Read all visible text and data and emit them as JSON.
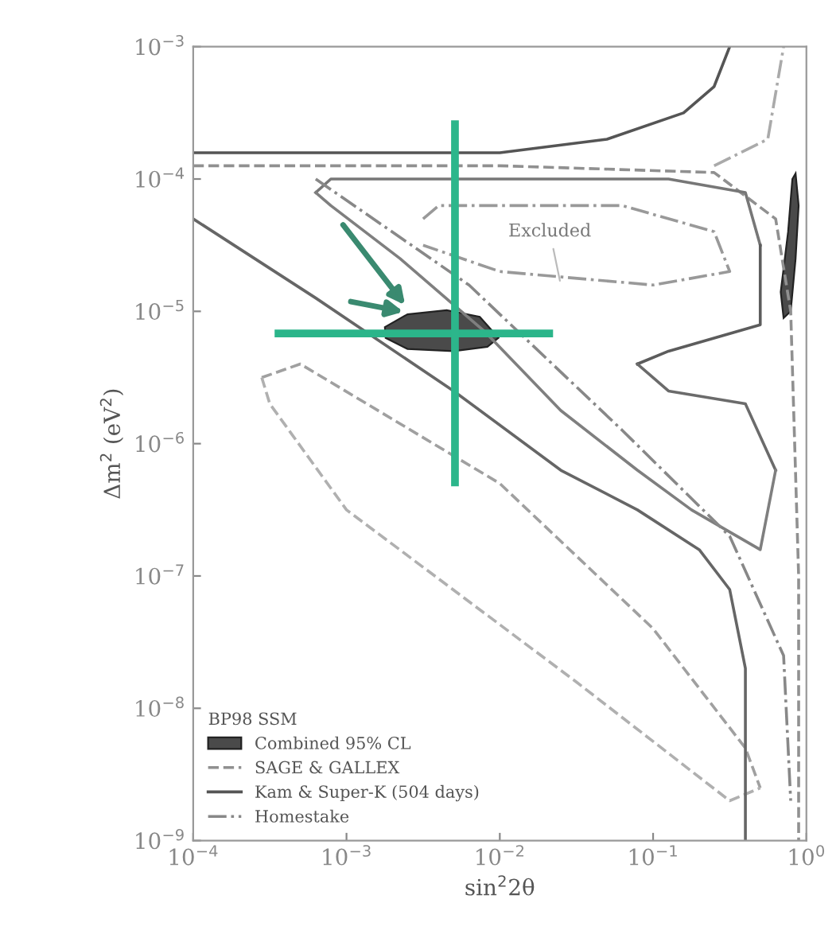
{
  "chart_data": {
    "type": "line",
    "xlabel": "sin$^{2}$2θ",
    "ylabel": "Δm$^{2}$ (eV$^{2}$)",
    "legend_title": "BP98 SSM",
    "legend": "bottom left",
    "log": "xy",
    "grid": false,
    "xlim": [
      0.0001,
      1
    ],
    "ylim": [
      1e-09,
      0.001
    ],
    "xticks": [
      {
        "value": 0.0001,
        "label": "10$^{−4}$"
      },
      {
        "value": 0.001,
        "label": "10$^{−3}$"
      },
      {
        "value": 0.01,
        "label": "10$^{−2}$"
      },
      {
        "value": 0.1,
        "label": "10$^{−1}$"
      },
      {
        "value": 1,
        "label": "10$^{0}$"
      }
    ],
    "yticks": [
      {
        "value": 1e-09,
        "label": "10$^{−9}$"
      },
      {
        "value": 1e-08,
        "label": "10$^{−8}$"
      },
      {
        "value": 1e-07,
        "label": "10$^{−7}$"
      },
      {
        "value": 1e-06,
        "label": "10$^{−6}$"
      },
      {
        "value": 1e-05,
        "label": "10$^{−5}$"
      },
      {
        "value": 0.0001,
        "label": "10$^{−4}$"
      },
      {
        "value": 0.001,
        "label": "10$^{−3}$"
      }
    ],
    "annotations": [
      {
        "text": "Excluded",
        "x": 0.025,
        "y": 1.58e-05
      }
    ],
    "series": [
      {
        "name": "Combined 95% CL",
        "type": "area",
        "color": "#4a4a4a",
        "x": [
          0.00178,
          0.0025,
          0.0045,
          0.0074,
          0.0098,
          0.0083,
          0.005,
          0.0025,
          0.0018
        ],
        "values": [
          7.6e-06,
          9.5e-06,
          1.02e-05,
          9.1e-06,
          6.3e-06,
          5.4e-06,
          5e-06,
          5.2e-06,
          6.3e-06
        ]
      },
      {
        "type": "area",
        "color": "#4a4a4a",
        "x": [
          0.85,
          0.89,
          0.85,
          0.79,
          0.71,
          0.68,
          0.76,
          0.81
        ],
        "values": [
          0.00011,
          6.3e-05,
          2.5e-05,
          1e-05,
          8.9e-06,
          1.4e-05,
          4e-05,
          0.0001
        ]
      },
      {
        "name": "SAGE & GALLEX",
        "line_style": "dashed",
        "color": "#909090",
        "x": [
          0.0001,
          0.01,
          0.25,
          0.63,
          0.79,
          0.89,
          0.89
        ],
        "values": [
          0.000126,
          0.000126,
          0.000112,
          5e-05,
          1e-05,
          1e-07,
          1e-09
        ]
      },
      {
        "line_style": "dashed",
        "color": "#a0a0a0",
        "x": [
          0.00028,
          0.0005,
          0.01,
          0.1,
          0.4,
          0.5
        ],
        "values": [
          3.16e-06,
          4e-06,
          5e-07,
          4e-08,
          5e-09,
          2.5e-09
        ]
      },
      {
        "line_style": "dashed",
        "color": "#b0b0b0",
        "x": [
          0.00028,
          0.000316,
          0.001,
          0.0316,
          0.316,
          0.5
        ],
        "values": [
          3.16e-06,
          2e-06,
          3.16e-07,
          1.58e-08,
          2e-09,
          2.5e-09
        ]
      },
      {
        "name": "Kam & Super-K (504 days)",
        "line_style": "solid",
        "color": "#555555",
        "x": [
          0.0001,
          0.001,
          0.01,
          0.05,
          0.158,
          0.25,
          0.316
        ],
        "values": [
          0.000158,
          0.000158,
          0.000158,
          0.0002,
          0.000316,
          0.0005,
          0.001
        ]
      },
      {
        "line_style": "solid",
        "color": "#666666",
        "x": [
          0.0001,
          0.00063,
          0.005,
          0.025,
          0.079,
          0.2,
          0.316,
          0.4,
          0.4
        ],
        "values": [
          5e-05,
          1.26e-05,
          2.5e-06,
          6.3e-07,
          3.16e-07,
          1.58e-07,
          7.9e-08,
          2e-08,
          1e-09
        ]
      },
      {
        "line_style": "solid",
        "color": "#777777",
        "x": [
          0.00063,
          0.00079,
          0.0079,
          0.126,
          0.4,
          0.5
        ],
        "values": [
          7.9e-05,
          0.0001,
          0.0001,
          0.0001,
          7.9e-05,
          3.16e-05
        ]
      },
      {
        "line_style": "solid",
        "color": "#5c5c5c",
        "x": [
          0.079,
          0.126,
          0.5,
          0.5
        ],
        "values": [
          4e-06,
          5e-06,
          7.9e-06,
          3.16e-05
        ]
      },
      {
        "line_style": "solid",
        "color": "#6b6b6b",
        "x": [
          0.079,
          0.126,
          0.4,
          0.63
        ],
        "values": [
          4e-06,
          2.5e-06,
          2e-06,
          6.3e-07
        ]
      },
      {
        "line_style": "solid",
        "color": "#7f7f7f",
        "x": [
          0.00063,
          0.00079,
          0.00224,
          0.0079,
          0.025,
          0.079,
          0.178,
          0.5,
          0.63
        ],
        "values": [
          7.9e-05,
          6.3e-05,
          2.5e-05,
          7.1e-06,
          1.78e-06,
          6.3e-07,
          3.16e-07,
          1.58e-07,
          6.3e-07
        ]
      },
      {
        "name": "Homestake",
        "line_style": "dashdot",
        "color": "#888888",
        "x": [
          0.00063,
          0.0063,
          0.063,
          0.316,
          0.71,
          0.79
        ],
        "values": [
          0.0001,
          1.58e-05,
          1.26e-06,
          2e-07,
          2.5e-08,
          2e-09
        ]
      },
      {
        "line_style": "dashdot",
        "color": "#999999",
        "x": [
          0.00316,
          0.004,
          0.063,
          0.25,
          0.316,
          0.1,
          0.01,
          0.00316
        ],
        "values": [
          5e-05,
          6.3e-05,
          6.3e-05,
          4e-05,
          2e-05,
          1.58e-05,
          2e-05,
          3.16e-05
        ]
      },
      {
        "line_style": "dashdot",
        "color": "#aaaaaa",
        "x": [
          0.25,
          0.56,
          0.71
        ],
        "values": [
          0.000126,
          0.0002,
          0.001
        ]
      },
      {
        "line_style": "solid",
        "color": "#2bb58a",
        "x": [
          0.00036,
          0.021
        ],
        "values": [
          6.8e-06,
          6.8e-06
        ]
      },
      {
        "line_style": "solid",
        "color": "#2cb68b",
        "x": [
          0.0051,
          0.0051
        ],
        "values": [
          5.1e-07,
          0.00026
        ]
      }
    ]
  }
}
